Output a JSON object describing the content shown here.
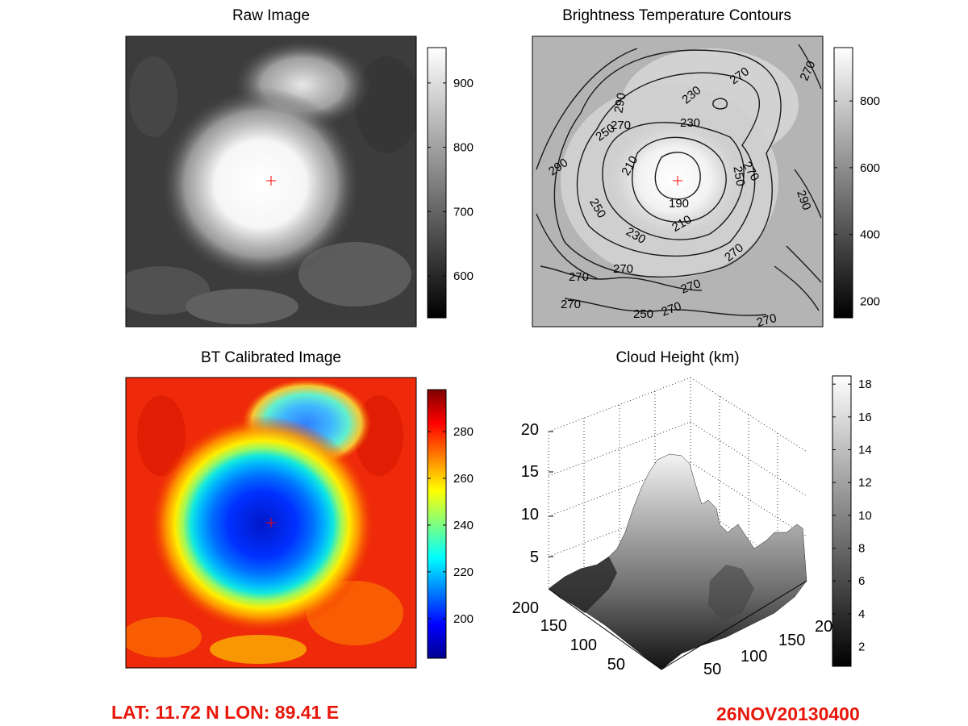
{
  "chart_data": [
    {
      "type": "heatmap",
      "title": "Raw Image",
      "colormap": "gray",
      "colorbar_ticks": [
        600,
        700,
        800,
        900
      ],
      "colorbar_range": [
        535,
        955
      ],
      "center_marker": "+"
    },
    {
      "type": "heatmap",
      "title": "Brightness Temperature Contours",
      "colormap": "gray",
      "colorbar_ticks": [
        200,
        400,
        600,
        800
      ],
      "colorbar_range": [
        150,
        960
      ],
      "contour_levels": [
        190,
        210,
        230,
        250,
        270,
        290
      ],
      "center_marker": "+"
    },
    {
      "type": "heatmap",
      "title": "BT Calibrated Image",
      "colormap": "jet",
      "colorbar_ticks": [
        200,
        220,
        240,
        260,
        280
      ],
      "colorbar_range": [
        183,
        298
      ],
      "center_marker": "+"
    },
    {
      "type": "surface",
      "title": "Cloud Height (km)",
      "colormap": "gray",
      "z_ticks": [
        5,
        10,
        15,
        20
      ],
      "x_ticks": [
        50,
        100,
        150,
        200
      ],
      "y_ticks": [
        50,
        100,
        150,
        "20"
      ],
      "zlim": [
        0,
        20
      ],
      "colorbar_ticks": [
        2,
        4,
        6,
        8,
        10,
        12,
        14,
        16,
        18
      ],
      "colorbar_range": [
        0.8,
        18.5
      ],
      "grid": true
    }
  ],
  "footer": {
    "location": "LAT: 11.72 N  LON: 89.41 E",
    "datetime": "26NOV20130400"
  },
  "colors": {
    "footer_text": "#e8170b",
    "marker": "#ff0000"
  }
}
